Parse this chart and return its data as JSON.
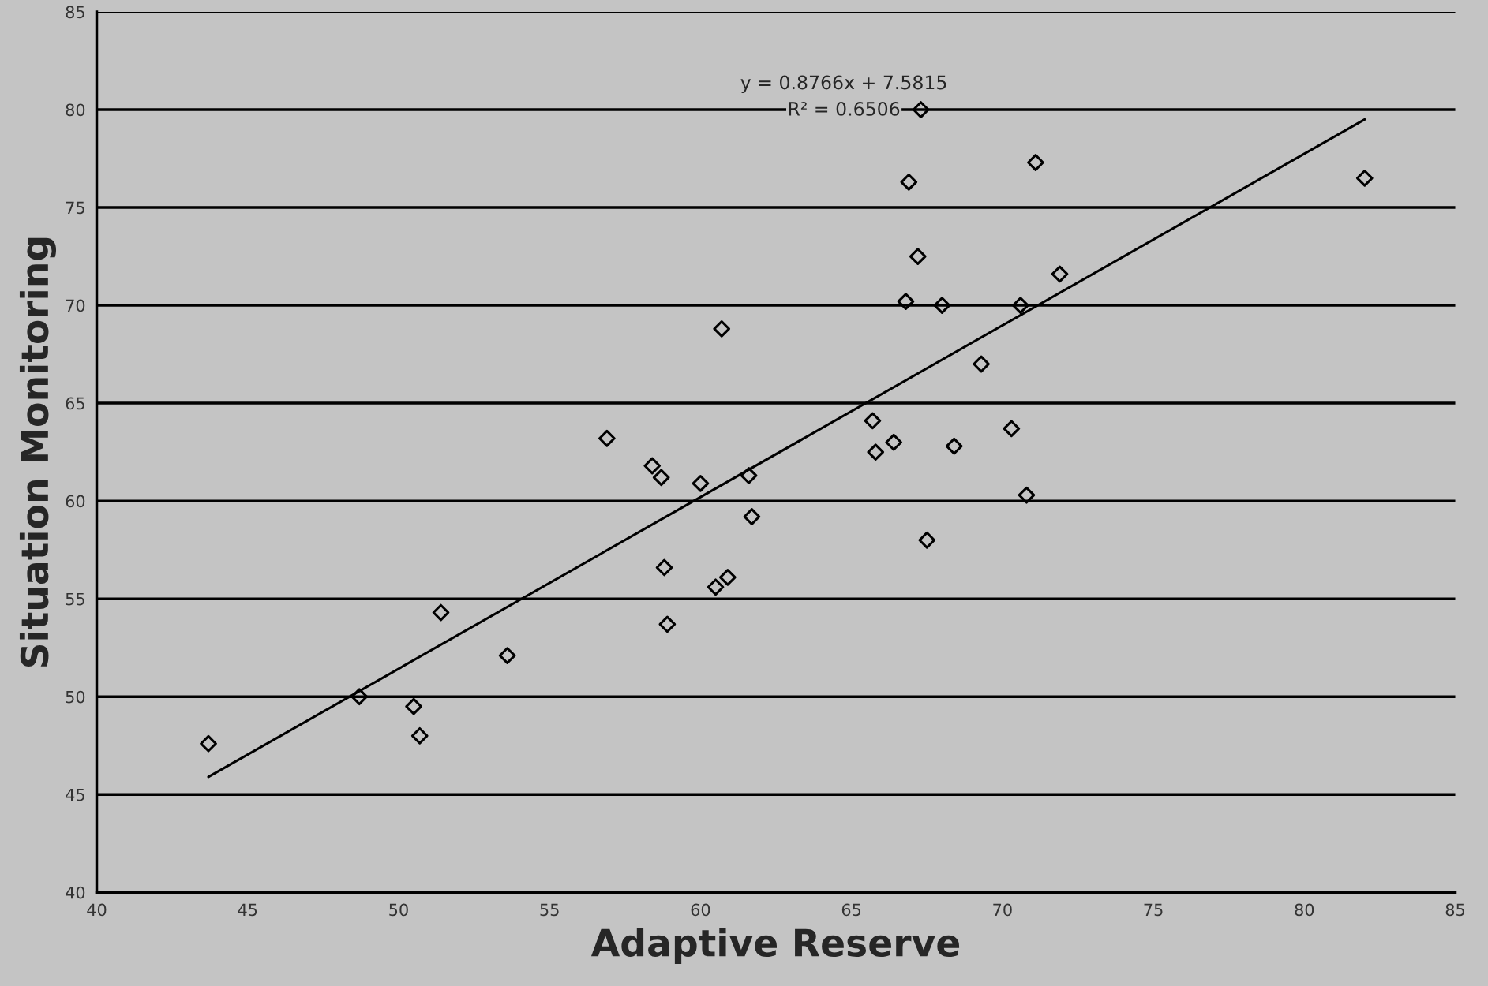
{
  "chart_data": {
    "type": "scatter",
    "xlabel": "Adaptive Reserve",
    "ylabel": "Situation Monitoring",
    "xlim": [
      40,
      85
    ],
    "ylim": [
      40,
      85
    ],
    "xticks": [
      40,
      45,
      50,
      55,
      60,
      65,
      70,
      75,
      80,
      85
    ],
    "yticks": [
      40,
      45,
      50,
      55,
      60,
      65,
      70,
      75,
      80,
      85
    ],
    "grid": "y",
    "legend": false,
    "annotations": [
      "y = 0.8766x + 7.5815",
      "R² = 0.6506"
    ],
    "series": [
      {
        "color": "#000000",
        "marker": "diamond",
        "x": [
          43.7,
          48.7,
          50.5,
          50.7,
          51.4,
          53.6,
          56.9,
          58.4,
          58.7,
          58.8,
          58.9,
          60.0,
          60.5,
          60.9,
          60.7,
          61.6,
          61.7,
          65.7,
          65.8,
          66.4,
          66.8,
          66.9,
          67.2,
          67.3,
          67.5,
          68.0,
          68.4,
          69.3,
          70.3,
          70.6,
          70.8,
          71.1,
          71.9,
          82.0
        ],
        "values": [
          47.6,
          50.0,
          49.5,
          48.0,
          54.3,
          52.1,
          63.2,
          61.8,
          61.2,
          56.6,
          53.7,
          60.9,
          55.6,
          56.1,
          68.8,
          61.3,
          59.2,
          64.1,
          62.5,
          63.0,
          70.2,
          76.3,
          72.5,
          80.0,
          58.0,
          70.0,
          62.8,
          67.0,
          63.7,
          70.0,
          60.3,
          77.3,
          71.6,
          76.5
        ]
      },
      {
        "type": "line",
        "color": "#000000",
        "x": [
          43.7,
          82.0
        ],
        "values": [
          45.9,
          79.5
        ]
      }
    ]
  }
}
